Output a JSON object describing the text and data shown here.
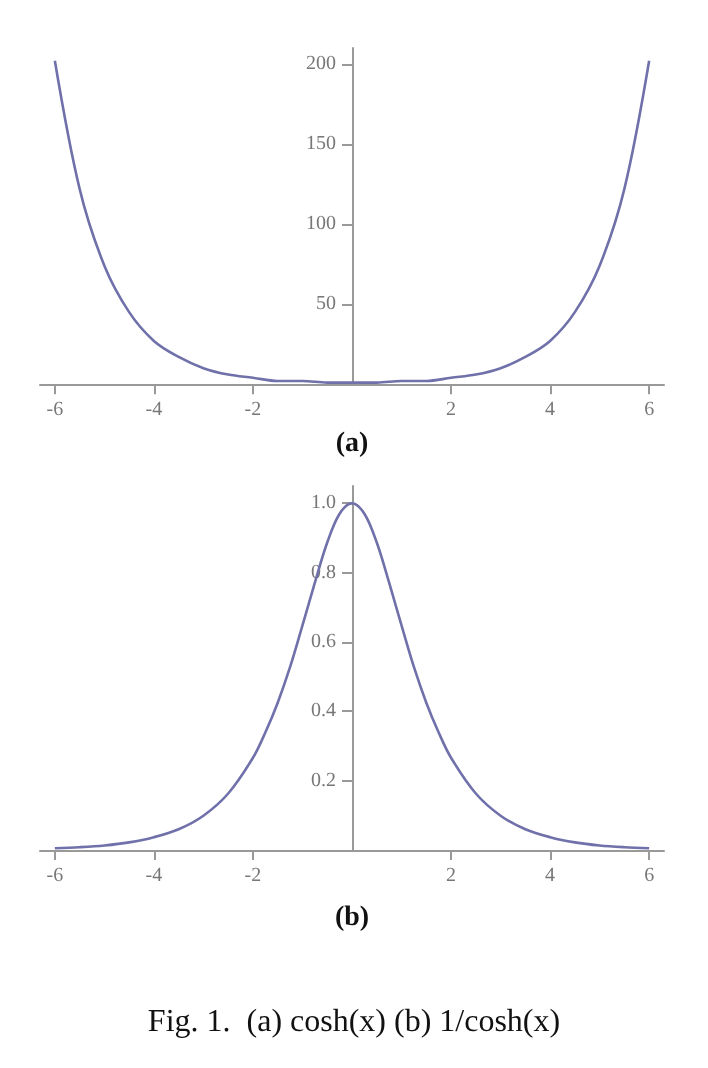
{
  "chart_data": [
    {
      "type": "line",
      "xlabel": "(a)",
      "x": [
        -6,
        -5.5,
        -5,
        -4.5,
        -4,
        -3.5,
        -3,
        -2.5,
        -2,
        -1.5,
        -1,
        -0.5,
        0,
        0.5,
        1,
        1.5,
        2,
        2.5,
        3,
        3.5,
        4,
        4.5,
        5,
        5.5,
        6
      ],
      "series": [
        {
          "color": "#7070aa",
          "values": [
            202,
            122,
            74,
            45,
            27,
            17,
            10,
            6,
            4,
            2,
            2,
            1,
            1,
            1,
            2,
            2,
            4,
            6,
            10,
            17,
            27,
            45,
            74,
            122,
            202
          ]
        }
      ],
      "xlim": [
        -6.3,
        6.3
      ],
      "ylim": [
        0,
        210
      ],
      "xticks": [
        -6,
        -4,
        -2,
        2,
        4,
        6
      ],
      "yticks": [
        50,
        100,
        150,
        200
      ],
      "grid": false,
      "marker": "none",
      "line_style": "solid"
    },
    {
      "type": "line",
      "xlabel": "(b)",
      "x": [
        -6,
        -5.5,
        -5,
        -4.5,
        -4,
        -3.5,
        -3,
        -2.5,
        -2,
        -1.75,
        -1.5,
        -1.25,
        -1,
        -0.75,
        -0.5,
        -0.25,
        0,
        0.25,
        0.5,
        0.75,
        1,
        1.25,
        1.5,
        1.75,
        2,
        2.5,
        3,
        3.5,
        4,
        4.5,
        5,
        5.5,
        6
      ],
      "series": [
        {
          "color": "#7070aa",
          "values": [
            0.005,
            0.008,
            0.013,
            0.022,
            0.037,
            0.06,
            0.099,
            0.163,
            0.266,
            0.339,
            0.425,
            0.528,
            0.648,
            0.771,
            0.887,
            0.97,
            1,
            0.97,
            0.887,
            0.771,
            0.648,
            0.528,
            0.425,
            0.339,
            0.266,
            0.163,
            0.099,
            0.06,
            0.037,
            0.022,
            0.013,
            0.008,
            0.005
          ]
        }
      ],
      "xlim": [
        -6.3,
        6.3
      ],
      "ylim": [
        0,
        1.05
      ],
      "xticks": [
        -6,
        -4,
        -2,
        2,
        4,
        6
      ],
      "yticks": [
        0.2,
        0.4,
        0.6,
        0.8,
        {
          "value": 1,
          "label": "1.0"
        }
      ],
      "grid": false,
      "marker": "none",
      "line_style": "solid",
      "annotations": [
        "Fig. 1.  (a) cosh(x) (b) 1/cosh(x)"
      ]
    }
  ]
}
